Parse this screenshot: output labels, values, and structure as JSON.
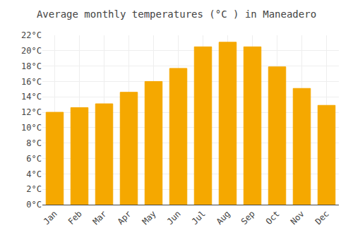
{
  "chart_data": {
    "type": "bar",
    "title": "Average monthly temperatures (°C ) in Maneadero",
    "categories": [
      "Jan",
      "Feb",
      "Mar",
      "Apr",
      "May",
      "Jun",
      "Jul",
      "Aug",
      "Sep",
      "Oct",
      "Nov",
      "Dec"
    ],
    "values": [
      12.0,
      12.6,
      13.1,
      14.6,
      16.0,
      17.7,
      20.5,
      21.1,
      20.5,
      17.9,
      15.1,
      12.9
    ],
    "color": "#F5A800",
    "ylim": [
      0,
      22
    ],
    "yticks": [
      {
        "value": 0,
        "label": "0°C"
      },
      {
        "value": 2,
        "label": "2°C"
      },
      {
        "value": 4,
        "label": "4°C"
      },
      {
        "value": 6,
        "label": "6°C"
      },
      {
        "value": 8,
        "label": "8°C"
      },
      {
        "value": 10,
        "label": "10°C"
      },
      {
        "value": 12,
        "label": "12°C"
      },
      {
        "value": 14,
        "label": "14°C"
      },
      {
        "value": 16,
        "label": "16°C"
      },
      {
        "value": 18,
        "label": "18°C"
      },
      {
        "value": 20,
        "label": "20°C"
      },
      {
        "value": 22,
        "label": "22°C"
      }
    ],
    "grid": true
  }
}
